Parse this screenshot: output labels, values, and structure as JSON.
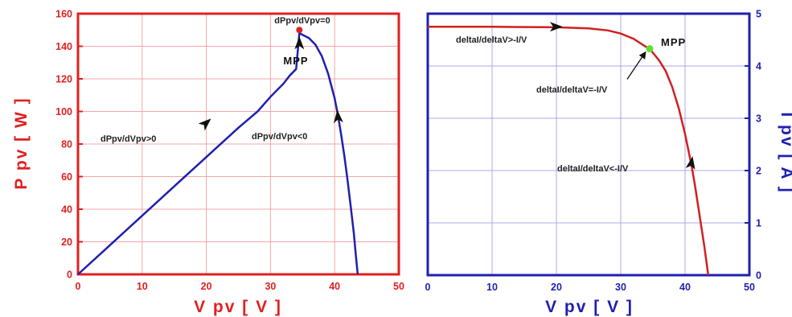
{
  "chart_data": [
    {
      "type": "line",
      "xlabel": "V pv [ V ]",
      "ylabel": "P pv [ W ]",
      "xlim": [
        0,
        50
      ],
      "ylim": [
        0,
        160
      ],
      "xticks": [
        "0",
        "10",
        "20",
        "30",
        "40",
        "50"
      ],
      "yticks": [
        "0",
        "20",
        "40",
        "60",
        "80",
        "100",
        "120",
        "140",
        "160"
      ],
      "grid": true,
      "frame_color": "#e02020",
      "series": [
        {
          "color": "#1f1fb0",
          "x": [
            0,
            5,
            10,
            15,
            20,
            25,
            28,
            30,
            32,
            33,
            34,
            34.5,
            35,
            36,
            37,
            38,
            39,
            40,
            40.5,
            41,
            41.5,
            42,
            42.5,
            43,
            43.3,
            43.6
          ],
          "y": [
            0,
            18,
            36,
            54,
            72,
            90,
            100,
            109,
            117,
            122,
            126,
            148,
            147,
            145,
            141,
            134,
            123,
            108,
            98,
            86,
            73,
            58,
            42,
            25,
            12,
            0
          ]
        }
      ],
      "annotations": [
        {
          "label": "dPpv/dVpv=0",
          "x": 34.5,
          "y": 150
        },
        {
          "label": "MPP",
          "x": 34.5,
          "y": 150
        },
        {
          "label": "dPpv/dVpv>0",
          "x": 20,
          "y": 93
        },
        {
          "label": "dPpv/dVpv<0",
          "x": 40.5,
          "y": 97
        }
      ]
    },
    {
      "type": "line",
      "xlabel": "V pv [ V ]",
      "ylabel": "I pv [ A ]",
      "xlim": [
        0,
        50
      ],
      "ylim": [
        0,
        5
      ],
      "xticks": [
        "0",
        "10",
        "20",
        "30",
        "40",
        "50"
      ],
      "yticks": [
        "0",
        "1",
        "2",
        "3",
        "4",
        "5"
      ],
      "grid": true,
      "frame_color": "#1f1fb0",
      "series": [
        {
          "color": "#d02020",
          "x": [
            0,
            10,
            20,
            25,
            28,
            30,
            32,
            33,
            34,
            34.5,
            36,
            37,
            38,
            39,
            40,
            40.5,
            41,
            41.5,
            42,
            42.5,
            43,
            43.3,
            43.6
          ],
          "y": [
            4.75,
            4.75,
            4.74,
            4.72,
            4.68,
            4.62,
            4.52,
            4.44,
            4.36,
            4.33,
            4.1,
            3.9,
            3.6,
            3.2,
            2.7,
            2.4,
            2.1,
            1.75,
            1.35,
            0.95,
            0.55,
            0.28,
            0
          ]
        }
      ],
      "annotations": [
        {
          "label": "deltaI/deltaV>-I/V",
          "x": 20,
          "y": 4.75
        },
        {
          "label": "MPP",
          "x": 34.5,
          "y": 4.33
        },
        {
          "label": "deltaI/deltaV=-I/V",
          "x": 34.5,
          "y": 4.33
        },
        {
          "label": "deltaI/deltaV<-I/V",
          "x": 41,
          "y": 2.0
        }
      ]
    }
  ]
}
